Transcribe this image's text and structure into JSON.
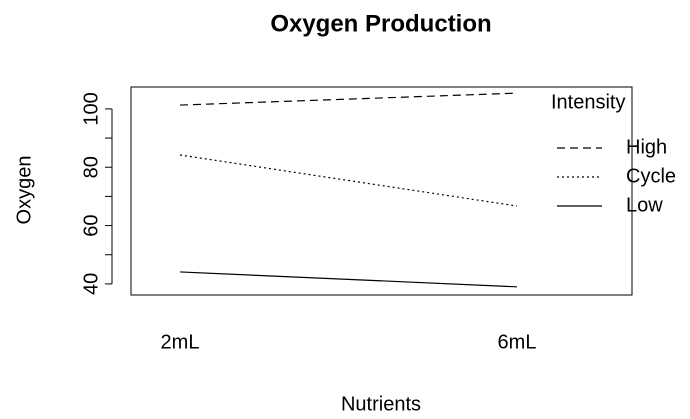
{
  "chart_data": {
    "type": "line",
    "title": "Oxygen Production",
    "x_label": "Nutrients",
    "y_label": "Oxygen",
    "categories": [
      "2mL",
      "6mL"
    ],
    "series": [
      {
        "name": "High",
        "color": "#000000",
        "linetype": "dashed",
        "values": [
          101.3,
          105.4
        ]
      },
      {
        "name": "Cycle",
        "color": "#000000",
        "linetype": "dotted",
        "values": [
          84.2,
          66.7
        ]
      },
      {
        "name": "Low",
        "color": "#000000",
        "linetype": "solid",
        "values": [
          44.1,
          39.0
        ]
      }
    ],
    "legend_title": "Intensity",
    "legend_position": "top-right",
    "ylim": [
      36.2,
      107.5
    ],
    "yticks": [
      40,
      60,
      80,
      100
    ],
    "yminorticks": [
      50,
      70,
      90
    ]
  }
}
